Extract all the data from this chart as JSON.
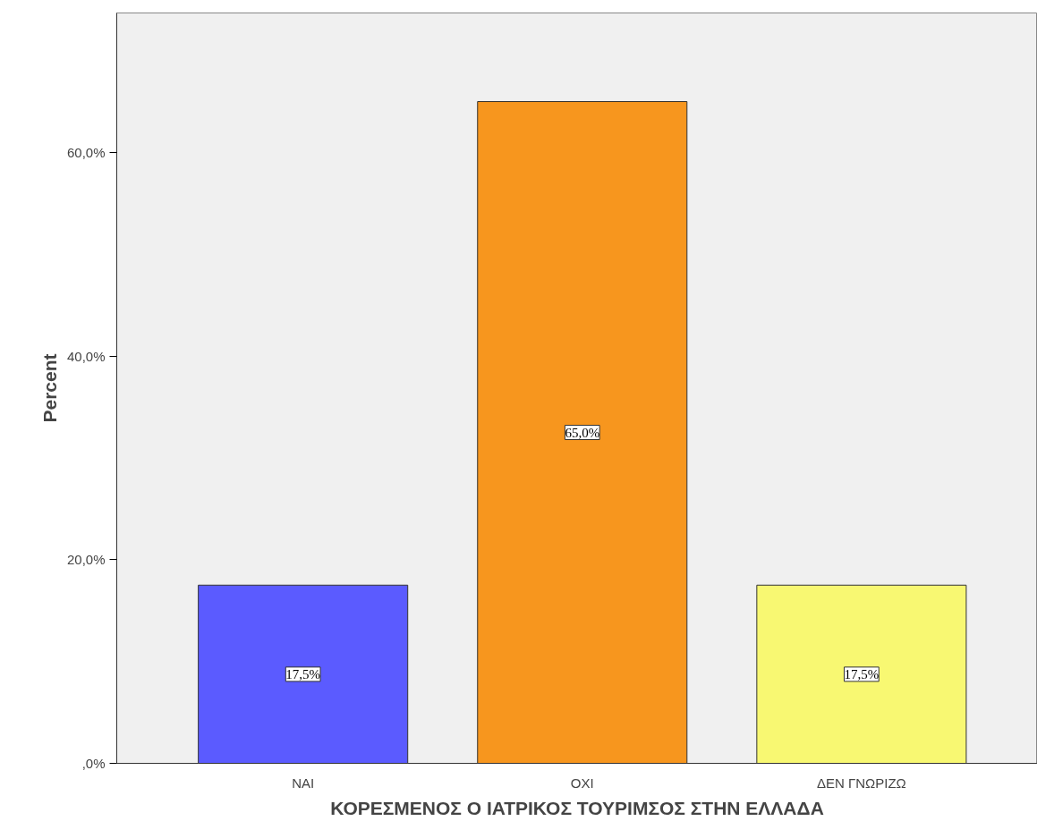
{
  "chart_data": {
    "type": "bar",
    "xlabel": "ΚΟΡΕΣΜΕΝΟΣ Ο ΙΑΤΡΙΚΟΣ ΤΟΥΡΙΜΣΟΣ ΣΤΗΝ ΕΛΛΑΔΑ",
    "ylabel": "Percent",
    "categories": [
      "ΝΑΙ",
      "ΟΧΙ",
      "ΔΕΝ ΓΝΩΡΙΖΩ"
    ],
    "values": [
      17.5,
      65.0,
      17.5
    ],
    "colors": [
      "#5b5bff",
      "#f7961e",
      "#f8f872"
    ],
    "value_labels": [
      "17,5%",
      "65,0%",
      "17,5%"
    ],
    "ylim": [
      0,
      73.7
    ],
    "yticks": [
      {
        "value": 0,
        "label": ",0%"
      },
      {
        "value": 20,
        "label": "20,0%"
      },
      {
        "value": 40,
        "label": "40,0%"
      },
      {
        "value": 60,
        "label": "60,0%"
      }
    ],
    "grid": false
  }
}
